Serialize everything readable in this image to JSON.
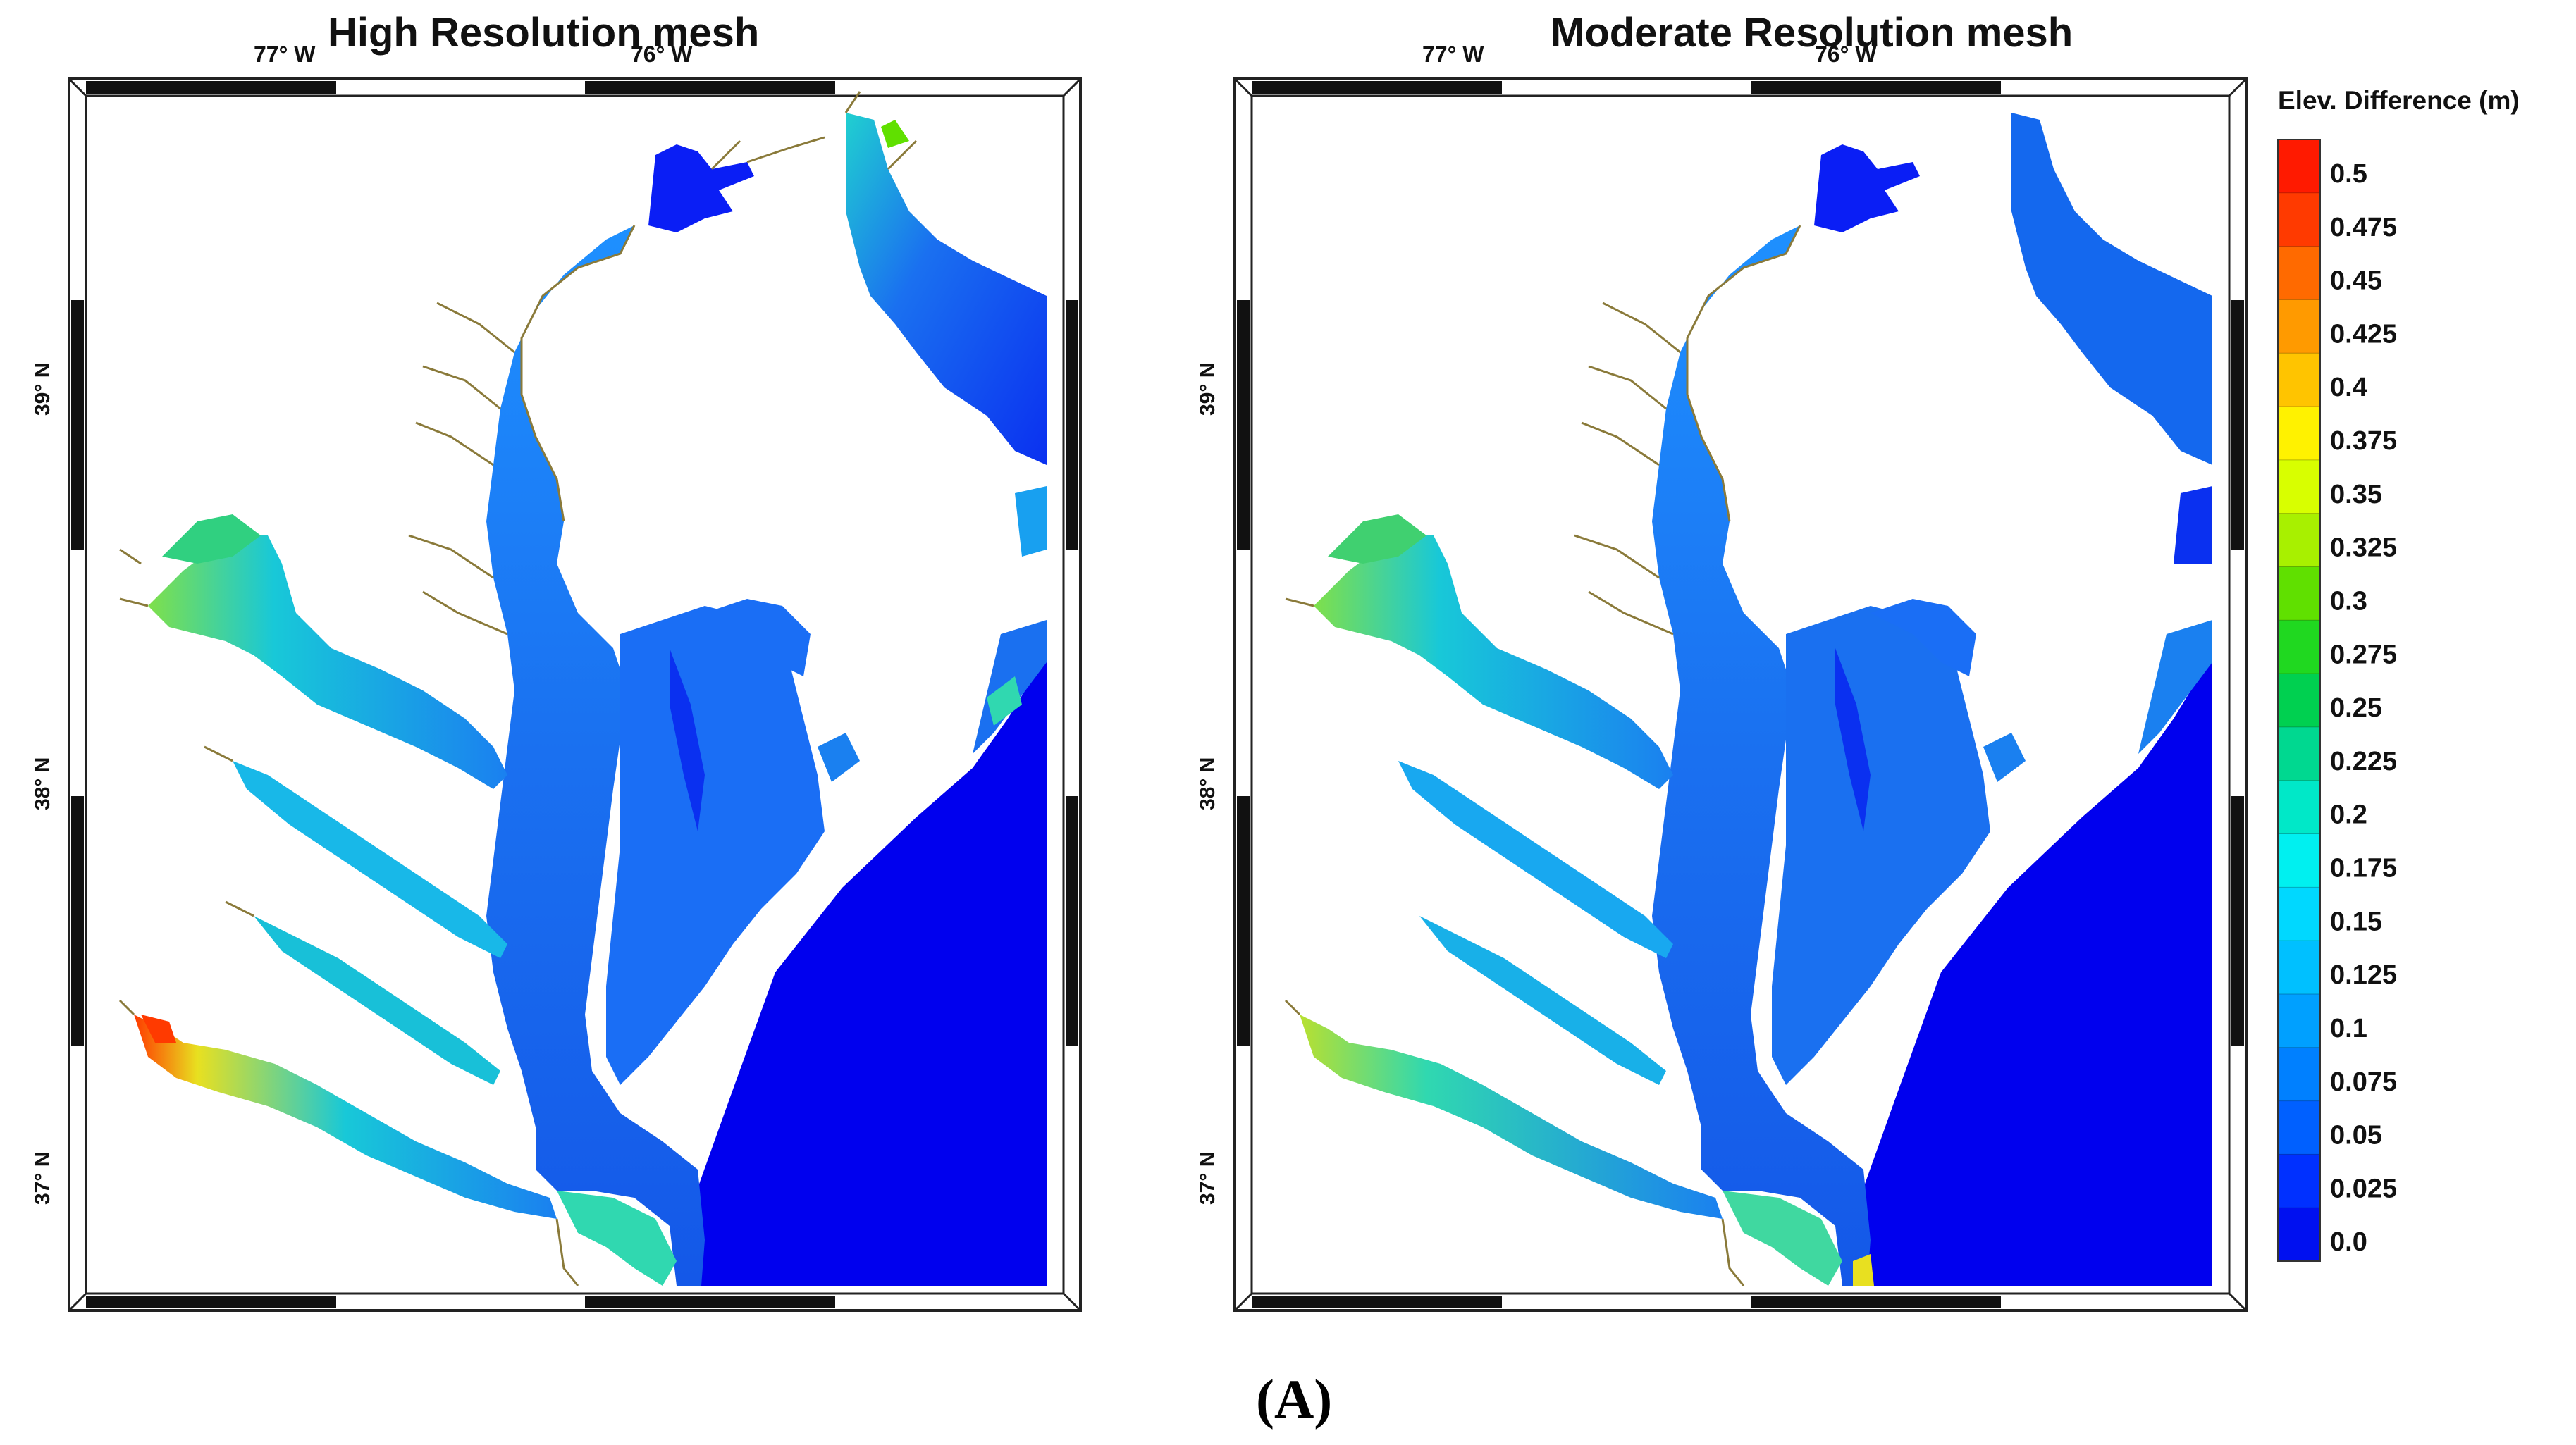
{
  "panels": [
    {
      "title": "High Resolution mesh",
      "lon_labels": [
        "77° W",
        "76° W"
      ],
      "lat_labels": [
        "39° N",
        "38° N",
        "37° N"
      ]
    },
    {
      "title": "Moderate Resolution mesh",
      "lon_labels": [
        "77° W",
        "76° W"
      ],
      "lat_labels": [
        "39° N",
        "38° N",
        "37° N"
      ]
    }
  ],
  "legend": {
    "title": "Elev. Difference (m)",
    "ticks": [
      "0.5",
      "0.475",
      "0.45",
      "0.425",
      "0.4",
      "0.375",
      "0.35",
      "0.325",
      "0.3",
      "0.275",
      "0.25",
      "0.225",
      "0.2",
      "0.175",
      "0.15",
      "0.125",
      "0.1",
      "0.075",
      "0.05",
      "0.025",
      "0.0"
    ],
    "colors": [
      "#ff1a00",
      "#ff3a00",
      "#ff6a00",
      "#ff9a00",
      "#ffc400",
      "#fff200",
      "#d8ff00",
      "#a8f000",
      "#60e000",
      "#20d820",
      "#00d050",
      "#00d890",
      "#00e8c8",
      "#00f0f0",
      "#00d8ff",
      "#00c0ff",
      "#00a0ff",
      "#0080ff",
      "#0060ff",
      "#0030ff",
      "#0010f0"
    ]
  },
  "colors": {
    "water_blue": "#1a6ef5",
    "deep_blue": "#0a1ef5",
    "ocean_blue": "#0000ee",
    "shoreline": "#8a7a3a"
  },
  "caption": "(A)"
}
